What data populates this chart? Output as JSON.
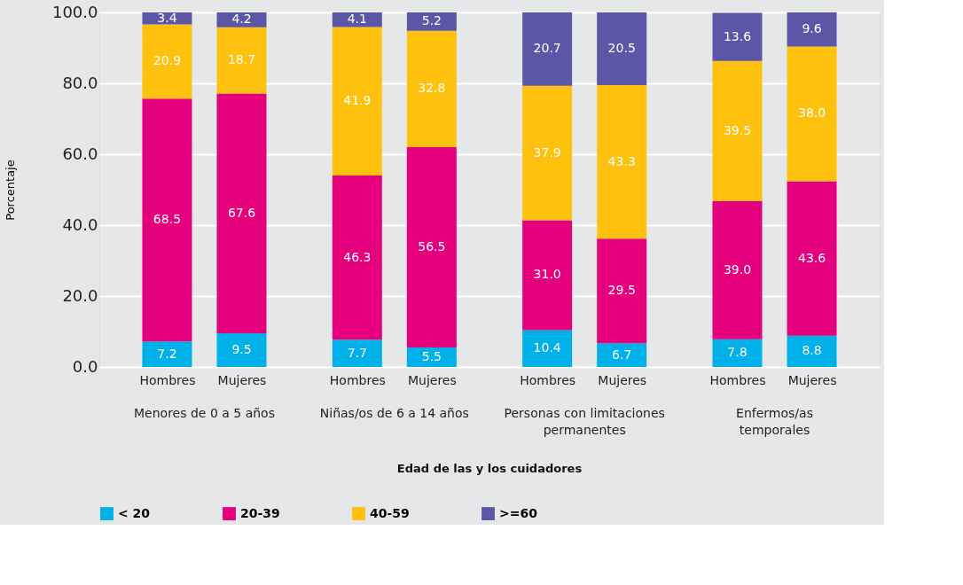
{
  "chart_data": {
    "type": "bar",
    "stacked": true,
    "ylabel": "Porcentaje",
    "categories": [
      "Hombres",
      "Mujeres",
      "Hombres",
      "Mujeres",
      "Hombres",
      "Mujeres",
      "Hombres",
      "Mujeres"
    ],
    "annotations": [
      "Menores de 0 a 5 años",
      "Niñas/os de 6 a 14 años",
      "Personas con limitaciones\npermanentes",
      "Enfermos/as\ntemporales",
      "Edad de las y los cuidadores"
    ],
    "series": [
      {
        "name": "< 20",
        "color": "#00b0e8",
        "values": [
          7.2,
          9.5,
          7.7,
          5.5,
          10.4,
          6.7,
          7.8,
          8.8
        ],
        "value_labels": [
          "7.2",
          "9.5",
          "7.7",
          "5.5",
          "10.4",
          "6.7",
          "7.8",
          "8.8"
        ]
      },
      {
        "name": "20-39",
        "color": "#e5007e",
        "values": [
          68.5,
          67.6,
          46.3,
          56.5,
          31.0,
          29.5,
          39.0,
          43.6
        ],
        "value_labels": [
          "68.5",
          "67.6",
          "46.3",
          "56.5",
          "31.0",
          "29.5",
          "39.0",
          "43.6"
        ]
      },
      {
        "name": "40-59",
        "color": "#fec10e",
        "values": [
          20.9,
          18.7,
          41.9,
          32.8,
          37.9,
          43.3,
          39.5,
          38.0
        ],
        "value_labels": [
          "20.9",
          "18.7",
          "41.9",
          "32.8",
          "37.9",
          "43.3",
          "39.5",
          "38.0"
        ]
      },
      {
        "name": ">=60",
        "color": "#5b56a6",
        "values": [
          3.4,
          4.2,
          4.1,
          5.2,
          20.7,
          20.5,
          13.6,
          9.6
        ],
        "value_labels": [
          "3.4",
          "4.2",
          "4.1",
          "5.2",
          "20.7",
          "20.5",
          "13.6",
          "9.6"
        ]
      }
    ],
    "ylim": [
      0,
      100
    ],
    "yticks": [
      {
        "value": 0,
        "label": "0.0"
      },
      {
        "value": 20,
        "label": "20.0"
      },
      {
        "value": 40,
        "label": "40.0"
      },
      {
        "value": 60,
        "label": "60.0"
      },
      {
        "value": 80,
        "label": "80.0"
      },
      {
        "value": 100,
        "label": "100.0"
      }
    ],
    "grid": "y",
    "legend": "bottom"
  }
}
